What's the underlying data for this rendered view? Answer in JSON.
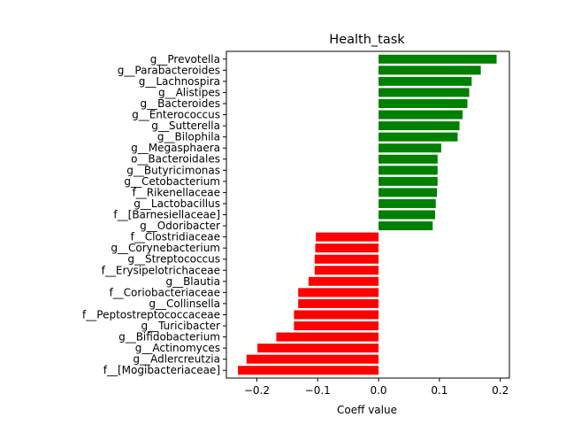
{
  "chart_data": {
    "type": "bar",
    "orientation": "horizontal",
    "title": "Health_task",
    "xlabel": "Coeff value",
    "ylabel": "",
    "xlim": [
      -0.25,
      0.215
    ],
    "xticks": [
      -0.2,
      -0.1,
      0.0,
      0.1,
      0.2
    ],
    "xtick_labels": [
      "−0.2",
      "−0.1",
      "0.0",
      "0.1",
      "0.2"
    ],
    "grid": false,
    "positive_color": "#008000",
    "negative_color": "#ff0000",
    "categories": [
      "g__Prevotella",
      "g__Parabacteroides",
      "g__Lachnospira",
      "g__Alistipes",
      "g__Bacteroides",
      "g__Enterococcus",
      "g__Sutterella",
      "g__Bilophila",
      "g__Megasphaera",
      "o__Bacteroidales",
      "g__Butyricimonas",
      "g__Cetobacterium",
      "f__Rikenellaceae",
      "g__Lactobacillus",
      "f__[Barnesiellaceae]",
      "g__Odoribacter",
      "f__Clostridiaceae",
      "g__Corynebacterium",
      "g__Streptococcus",
      "f__Erysipelotrichaceae",
      "g__Blautia",
      "f__Coriobacteriaceae",
      "g__Collinsella",
      "f__Peptostreptococcaceae",
      "g__Turicibacter",
      "g__Bifidobacterium",
      "g__Actinomyces",
      "g__Adlercreutzia",
      "f__[Mogibacteriaceae]"
    ],
    "values": [
      0.194,
      0.168,
      0.153,
      0.149,
      0.146,
      0.138,
      0.133,
      0.13,
      0.103,
      0.097,
      0.097,
      0.097,
      0.096,
      0.094,
      0.093,
      0.089,
      -0.103,
      -0.104,
      -0.105,
      -0.105,
      -0.115,
      -0.132,
      -0.132,
      -0.139,
      -0.139,
      -0.168,
      -0.199,
      -0.217,
      -0.231
    ]
  }
}
